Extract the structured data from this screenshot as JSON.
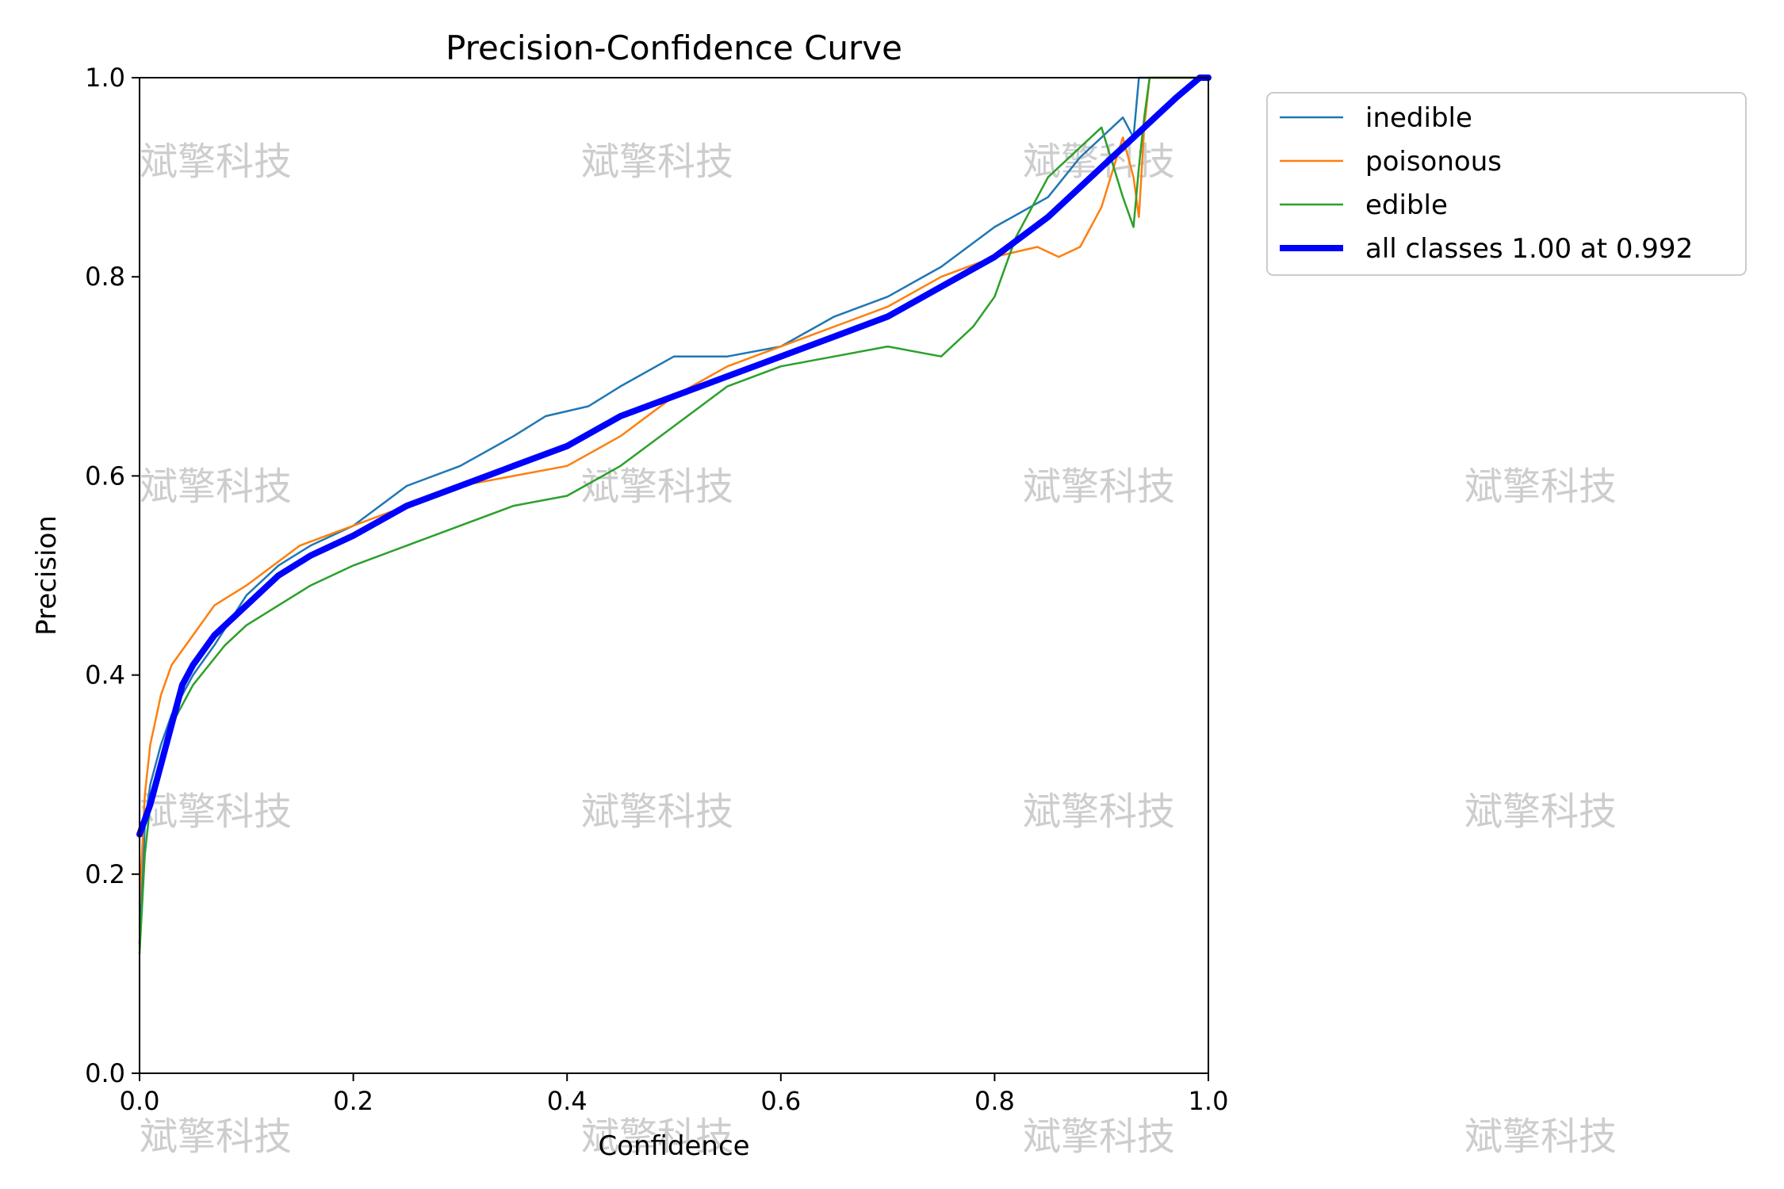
{
  "chart_data": {
    "type": "line",
    "title": "Precision-Confidence Curve",
    "xlabel": "Confidence",
    "ylabel": "Precision",
    "xlim": [
      0,
      1
    ],
    "ylim": [
      0,
      1
    ],
    "xticks": [
      "0.0",
      "0.2",
      "0.4",
      "0.6",
      "0.8",
      "1.0"
    ],
    "yticks": [
      "0.0",
      "0.2",
      "0.4",
      "0.6",
      "0.8",
      "1.0"
    ],
    "legend_position": "outside-top-right",
    "watermark": "斌擎科技",
    "series": [
      {
        "name": "inedible",
        "color": "#1f77b4",
        "width": 2.5,
        "x": [
          0.0,
          0.005,
          0.01,
          0.02,
          0.03,
          0.05,
          0.07,
          0.1,
          0.13,
          0.16,
          0.2,
          0.25,
          0.3,
          0.35,
          0.38,
          0.42,
          0.45,
          0.5,
          0.55,
          0.6,
          0.65,
          0.7,
          0.75,
          0.8,
          0.85,
          0.88,
          0.9,
          0.92,
          0.93,
          0.935,
          0.94,
          0.95,
          1.0
        ],
        "values": [
          0.13,
          0.25,
          0.29,
          0.33,
          0.36,
          0.4,
          0.43,
          0.48,
          0.51,
          0.53,
          0.55,
          0.59,
          0.61,
          0.64,
          0.66,
          0.67,
          0.69,
          0.72,
          0.72,
          0.73,
          0.76,
          0.78,
          0.81,
          0.85,
          0.88,
          0.92,
          0.94,
          0.96,
          0.94,
          1.0,
          1.0,
          1.0,
          1.0
        ]
      },
      {
        "name": "poisonous",
        "color": "#ff7f0e",
        "width": 2.5,
        "x": [
          0.0,
          0.005,
          0.01,
          0.02,
          0.03,
          0.05,
          0.07,
          0.1,
          0.15,
          0.2,
          0.25,
          0.3,
          0.35,
          0.4,
          0.45,
          0.5,
          0.55,
          0.6,
          0.65,
          0.7,
          0.75,
          0.8,
          0.84,
          0.86,
          0.88,
          0.9,
          0.92,
          0.93,
          0.935,
          0.94,
          0.945,
          1.0
        ],
        "values": [
          0.17,
          0.28,
          0.33,
          0.38,
          0.41,
          0.44,
          0.47,
          0.49,
          0.53,
          0.55,
          0.57,
          0.59,
          0.6,
          0.61,
          0.64,
          0.68,
          0.71,
          0.73,
          0.75,
          0.77,
          0.8,
          0.82,
          0.83,
          0.82,
          0.83,
          0.87,
          0.94,
          0.9,
          0.86,
          0.95,
          1.0,
          1.0
        ]
      },
      {
        "name": "edible",
        "color": "#2ca02c",
        "width": 2.5,
        "x": [
          0.0,
          0.005,
          0.01,
          0.02,
          0.03,
          0.05,
          0.08,
          0.1,
          0.13,
          0.16,
          0.2,
          0.25,
          0.3,
          0.35,
          0.4,
          0.45,
          0.5,
          0.55,
          0.6,
          0.65,
          0.7,
          0.75,
          0.78,
          0.8,
          0.82,
          0.85,
          0.88,
          0.9,
          0.92,
          0.93,
          0.935,
          0.94,
          0.945,
          1.0
        ],
        "values": [
          0.12,
          0.22,
          0.27,
          0.31,
          0.35,
          0.39,
          0.43,
          0.45,
          0.47,
          0.49,
          0.51,
          0.53,
          0.55,
          0.57,
          0.58,
          0.61,
          0.65,
          0.69,
          0.71,
          0.72,
          0.73,
          0.72,
          0.75,
          0.78,
          0.84,
          0.9,
          0.93,
          0.95,
          0.88,
          0.85,
          0.91,
          0.96,
          1.0,
          1.0
        ]
      },
      {
        "name": "all classes 1.00 at 0.992",
        "color": "#0000ff",
        "width": 8,
        "x": [
          0.0,
          0.01,
          0.02,
          0.03,
          0.04,
          0.05,
          0.07,
          0.1,
          0.13,
          0.16,
          0.2,
          0.25,
          0.3,
          0.35,
          0.4,
          0.45,
          0.5,
          0.55,
          0.6,
          0.65,
          0.7,
          0.75,
          0.8,
          0.85,
          0.88,
          0.9,
          0.92,
          0.95,
          0.97,
          0.992,
          1.0
        ],
        "values": [
          0.24,
          0.27,
          0.31,
          0.35,
          0.39,
          0.41,
          0.44,
          0.47,
          0.5,
          0.52,
          0.54,
          0.57,
          0.59,
          0.61,
          0.63,
          0.66,
          0.68,
          0.7,
          0.72,
          0.74,
          0.76,
          0.79,
          0.82,
          0.86,
          0.89,
          0.91,
          0.93,
          0.96,
          0.98,
          1.0,
          1.0
        ]
      }
    ]
  }
}
